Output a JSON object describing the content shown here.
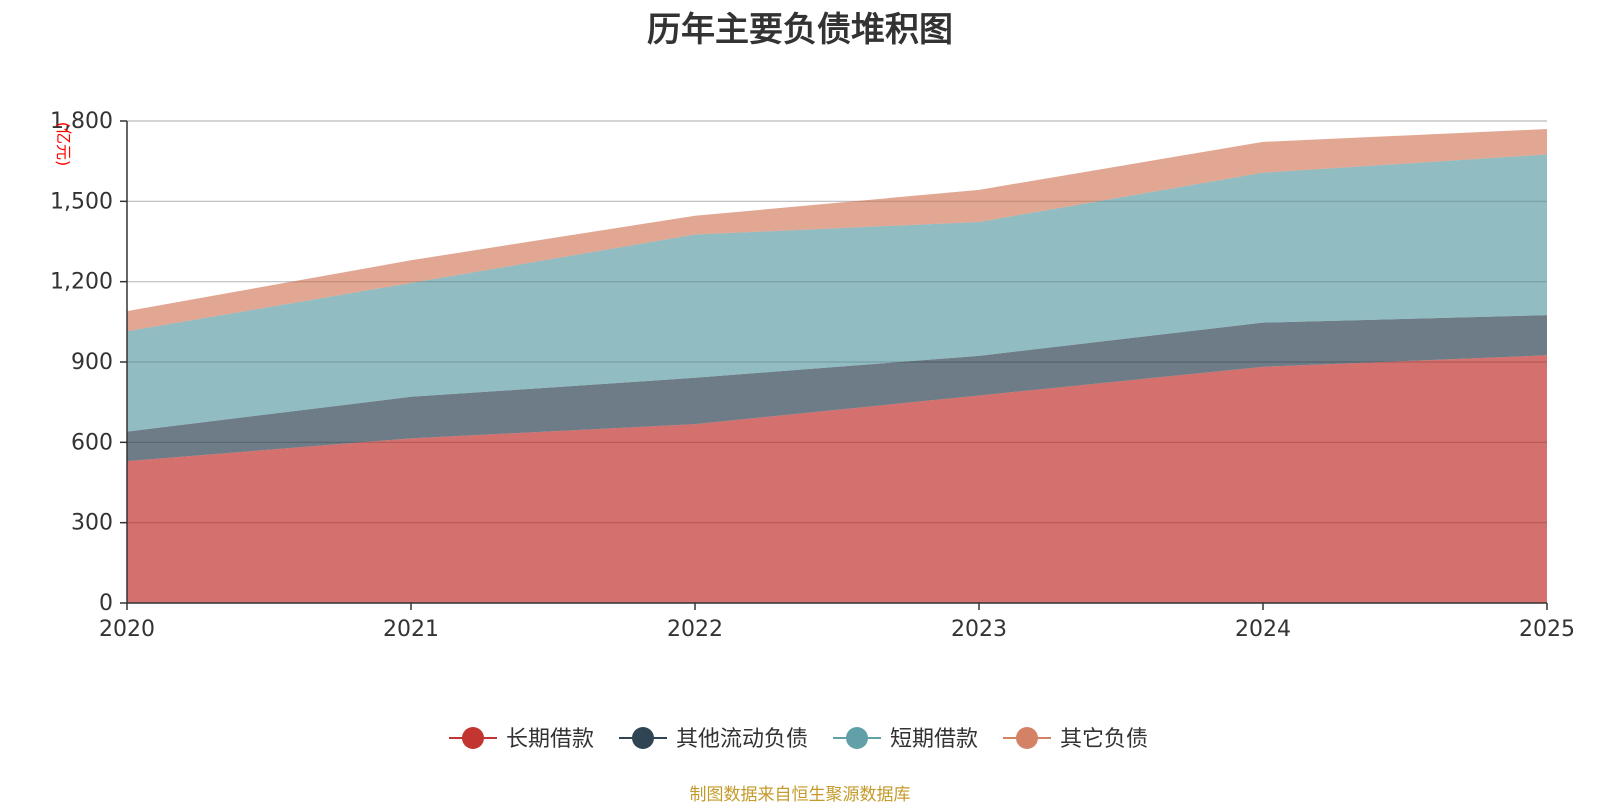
{
  "chart_data": {
    "type": "area",
    "stacked": true,
    "title": "历年主要负债堆积图",
    "unit_label": "(亿元)",
    "x": [
      "2020",
      "2021",
      "2022",
      "2023",
      "2024",
      "2025"
    ],
    "ylim": [
      0,
      1800
    ],
    "yticks": [
      0,
      300,
      600,
      900,
      1200,
      1500,
      1800
    ],
    "ytick_labels": [
      "0",
      "300",
      "600",
      "900",
      "1,200",
      "1,500",
      "1,800"
    ],
    "grid": true,
    "legend_position": "bottom-center",
    "series": [
      {
        "name": "长期借款",
        "color": "#c23531",
        "values": [
          530,
          615,
          668,
          775,
          882,
          925
        ]
      },
      {
        "name": "其他流动负债",
        "color": "#2f4554",
        "values": [
          110,
          155,
          173,
          148,
          165,
          150
        ]
      },
      {
        "name": "短期借款",
        "color": "#61a0a8",
        "values": [
          375,
          425,
          535,
          500,
          560,
          600
        ]
      },
      {
        "name": "其它负债",
        "color": "#d48265",
        "values": [
          75,
          85,
          70,
          120,
          115,
          95
        ]
      }
    ]
  },
  "footer": "制图数据来自恒生聚源数据库"
}
